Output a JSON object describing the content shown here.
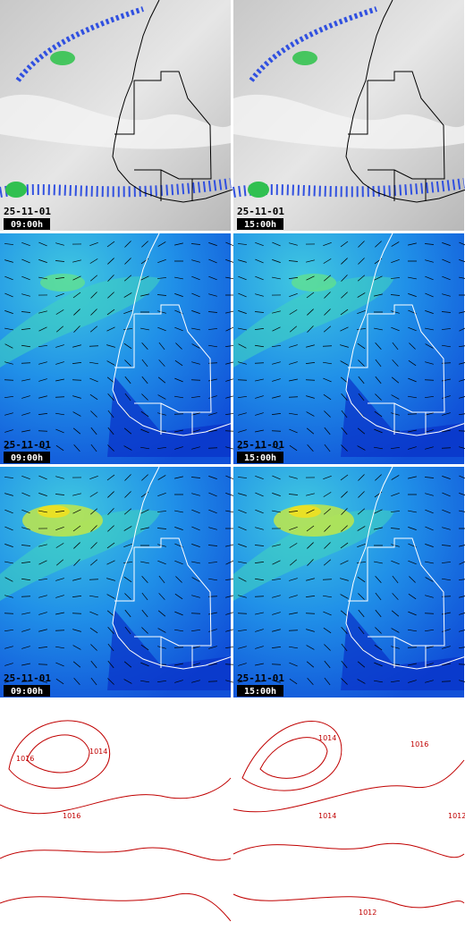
{
  "panels": [
    {
      "date": "25-11-01",
      "time": "09:00h"
    },
    {
      "date": "25-11-01",
      "time": "15:00h"
    },
    {
      "date": "25-11-01",
      "time": "09:00h"
    },
    {
      "date": "25-11-01",
      "time": "15:00h"
    },
    {
      "date": "25-11-01",
      "time": "09:00h"
    },
    {
      "date": "25-11-01",
      "time": "15:00h"
    }
  ],
  "contour_panels": [
    {
      "labels": [
        "1014",
        "1016",
        "1016"
      ]
    },
    {
      "labels": [
        "1014",
        "1016",
        "1014",
        "1012",
        "1012"
      ]
    }
  ]
}
